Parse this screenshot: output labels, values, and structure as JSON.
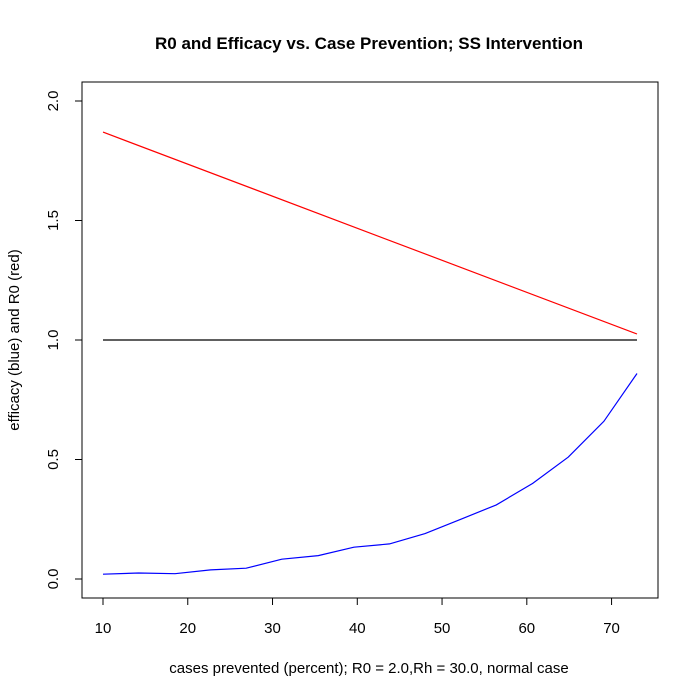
{
  "chart_data": {
    "type": "line",
    "title": "R0 and Efficacy vs. Case Prevention; SS Intervention",
    "xlabel": "cases prevented (percent); R0 = 2.0,Rh = 30.0, normal case",
    "ylabel": "efficacy (blue) and R0 (red)",
    "xlim": [
      10,
      73
    ],
    "ylim": [
      0,
      2
    ],
    "x_ticks": [
      10,
      20,
      30,
      40,
      50,
      60,
      70
    ],
    "y_ticks": [
      "0.0",
      "0.5",
      "1.0",
      "1.5",
      "2.0"
    ],
    "grid": false,
    "legend": "none",
    "series": [
      {
        "color": "#ff0000",
        "x": [
          10,
          73
        ],
        "values": [
          1.87,
          1.025
        ]
      },
      {
        "color": "#000000",
        "x": [
          10,
          73
        ],
        "values": [
          1.0,
          1.0
        ]
      },
      {
        "color": "#0000ff",
        "x": [
          10,
          14.2,
          18.5,
          22.7,
          26.9,
          31.1,
          35.4,
          39.6,
          43.8,
          48.0,
          52.2,
          56.4,
          60.7,
          64.9,
          69.1,
          73.0
        ],
        "values": [
          0.02,
          0.025,
          0.022,
          0.038,
          0.045,
          0.083,
          0.098,
          0.133,
          0.147,
          0.19,
          0.25,
          0.31,
          0.4,
          0.51,
          0.66,
          0.86
        ]
      }
    ]
  }
}
